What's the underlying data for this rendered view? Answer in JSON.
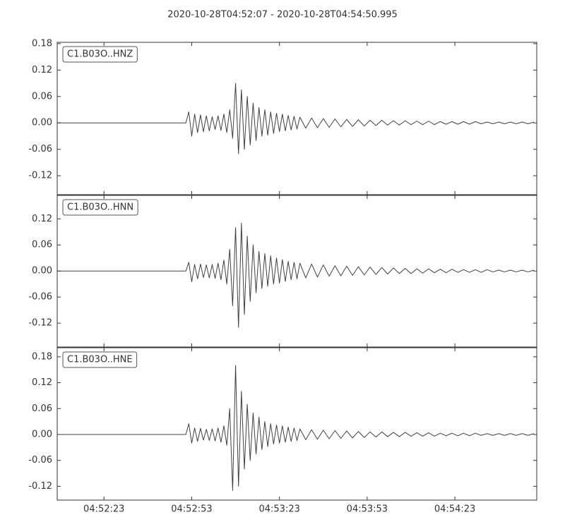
{
  "title": "2020-10-28T04:52:07  -  2020-10-28T04:54:50.995",
  "chart_data": [
    {
      "type": "line",
      "xlim": [
        17527,
        17690.995
      ],
      "ylim": [
        -0.163,
        0.183
      ],
      "yticks": [
        0.18,
        0.12,
        0.06,
        {
          "value": 0,
          "label": "0.00"
        },
        -0.06,
        -0.12
      ],
      "x": [
        17527,
        17571,
        17572,
        17573,
        17574,
        17575,
        17576,
        17577,
        17578,
        17579,
        17580,
        17581,
        17582,
        17583,
        17584,
        17585,
        17586,
        17587,
        17588,
        17589,
        17590,
        17591,
        17592,
        17593,
        17594,
        17595,
        17596,
        17597,
        17598,
        17599,
        17600,
        17601,
        17602,
        17603,
        17604,
        17605,
        17606,
        17607,
        17608,
        17609,
        17610,
        17612,
        17614,
        17616,
        17618,
        17620,
        17622,
        17624,
        17626,
        17628,
        17630,
        17632,
        17634,
        17636,
        17638,
        17640,
        17642,
        17644,
        17646,
        17648,
        17650,
        17652,
        17654,
        17656,
        17658,
        17660,
        17662,
        17664,
        17666,
        17668,
        17670,
        17672,
        17674,
        17676,
        17678,
        17680,
        17682,
        17684,
        17686,
        17688,
        17690
      ],
      "series": [
        {
          "name": "C1.B03O..HNZ",
          "color": "#404040",
          "values": [
            0,
            0,
            0.025,
            -0.03,
            0.02,
            -0.022,
            0.018,
            -0.02,
            0.016,
            -0.018,
            0.014,
            -0.015,
            0.016,
            -0.017,
            0.02,
            -0.022,
            0.03,
            -0.035,
            0.09,
            -0.07,
            0.075,
            -0.06,
            0.06,
            -0.05,
            0.045,
            -0.04,
            0.035,
            -0.03,
            0.03,
            -0.028,
            0.025,
            -0.024,
            0.022,
            -0.02,
            0.02,
            -0.018,
            0.017,
            -0.016,
            0.015,
            -0.014,
            0.013,
            -0.012,
            0.011,
            -0.011,
            0.01,
            -0.01,
            0.009,
            -0.009,
            0.008,
            -0.008,
            0.007,
            -0.007,
            0.006,
            -0.006,
            0.006,
            -0.005,
            0.005,
            -0.005,
            0.005,
            -0.004,
            0.004,
            -0.004,
            0.004,
            -0.004,
            0.003,
            -0.003,
            0.003,
            -0.003,
            0.003,
            -0.003,
            0.003,
            -0.002,
            0.002,
            -0.002,
            0.002,
            -0.002,
            0.002,
            -0.002,
            0.002,
            -0.002,
            0.002
          ]
        }
      ]
    },
    {
      "type": "line",
      "xlim": [
        17527,
        17690.995
      ],
      "ylim": [
        -0.175,
        0.174
      ],
      "yticks": [
        0.12,
        0.06,
        {
          "value": 0,
          "label": "0.00"
        },
        -0.06,
        -0.12
      ],
      "x": [
        17527,
        17571,
        17572,
        17573,
        17574,
        17575,
        17576,
        17577,
        17578,
        17579,
        17580,
        17581,
        17582,
        17583,
        17584,
        17585,
        17586,
        17587,
        17588,
        17589,
        17590,
        17591,
        17592,
        17593,
        17594,
        17595,
        17596,
        17597,
        17598,
        17599,
        17600,
        17601,
        17602,
        17603,
        17604,
        17605,
        17606,
        17607,
        17608,
        17609,
        17610,
        17612,
        17614,
        17616,
        17618,
        17620,
        17622,
        17624,
        17626,
        17628,
        17630,
        17632,
        17634,
        17636,
        17638,
        17640,
        17642,
        17644,
        17646,
        17648,
        17650,
        17652,
        17654,
        17656,
        17658,
        17660,
        17662,
        17664,
        17666,
        17668,
        17670,
        17672,
        17674,
        17676,
        17678,
        17680,
        17682,
        17684,
        17686,
        17688,
        17690
      ],
      "series": [
        {
          "name": "C1.B03O..HNN",
          "color": "#404040",
          "values": [
            0,
            0,
            0.02,
            -0.025,
            0.015,
            -0.018,
            0.016,
            -0.015,
            0.014,
            -0.016,
            0.015,
            -0.017,
            0.018,
            -0.02,
            0.025,
            -0.03,
            0.05,
            -0.08,
            0.1,
            -0.13,
            0.11,
            -0.1,
            0.08,
            -0.07,
            0.06,
            -0.05,
            0.045,
            -0.04,
            0.04,
            -0.035,
            0.035,
            -0.03,
            0.03,
            -0.028,
            0.026,
            -0.024,
            0.022,
            -0.02,
            0.02,
            -0.018,
            0.018,
            -0.016,
            0.016,
            -0.014,
            0.014,
            -0.012,
            0.012,
            -0.011,
            0.011,
            -0.01,
            0.01,
            -0.009,
            0.009,
            -0.008,
            0.008,
            -0.007,
            0.007,
            -0.006,
            0.006,
            -0.006,
            0.005,
            -0.005,
            0.005,
            -0.004,
            0.004,
            -0.004,
            0.004,
            -0.003,
            0.003,
            -0.003,
            0.003,
            -0.003,
            0.003,
            -0.002,
            0.002,
            -0.002,
            0.002,
            -0.002,
            0.002,
            -0.002,
            0.002
          ]
        }
      ]
    },
    {
      "type": "line",
      "xlim": [
        17527,
        17690.995
      ],
      "ylim": [
        -0.152,
        0.201
      ],
      "yticks": [
        0.18,
        0.12,
        0.06,
        {
          "value": 0,
          "label": "0.00"
        },
        -0.06,
        -0.12
      ],
      "xticks": [
        {
          "value": 17543,
          "label": "04:52:23"
        },
        {
          "value": 17573,
          "label": "04:52:53"
        },
        {
          "value": 17603,
          "label": "04:53:23"
        },
        {
          "value": 17633,
          "label": "04:53:53"
        },
        {
          "value": 17663,
          "label": "04:54:23"
        }
      ],
      "x": [
        17527,
        17571,
        17572,
        17573,
        17574,
        17575,
        17576,
        17577,
        17578,
        17579,
        17580,
        17581,
        17582,
        17583,
        17584,
        17585,
        17586,
        17587,
        17588,
        17589,
        17590,
        17591,
        17592,
        17593,
        17594,
        17595,
        17596,
        17597,
        17598,
        17599,
        17600,
        17601,
        17602,
        17603,
        17604,
        17605,
        17606,
        17607,
        17608,
        17609,
        17610,
        17612,
        17614,
        17616,
        17618,
        17620,
        17622,
        17624,
        17626,
        17628,
        17630,
        17632,
        17634,
        17636,
        17638,
        17640,
        17642,
        17644,
        17646,
        17648,
        17650,
        17652,
        17654,
        17656,
        17658,
        17660,
        17662,
        17664,
        17666,
        17668,
        17670,
        17672,
        17674,
        17676,
        17678,
        17680,
        17682,
        17684,
        17686,
        17688,
        17690
      ],
      "series": [
        {
          "name": "C1.B03O..HNE",
          "color": "#404040",
          "values": [
            0,
            0,
            0.025,
            -0.02,
            0.015,
            -0.016,
            0.014,
            -0.013,
            0.012,
            -0.014,
            0.013,
            -0.015,
            0.015,
            -0.018,
            0.02,
            -0.025,
            0.06,
            -0.13,
            0.16,
            -0.12,
            0.1,
            -0.08,
            0.07,
            -0.06,
            0.05,
            -0.045,
            0.04,
            -0.035,
            0.03,
            -0.028,
            0.025,
            -0.022,
            0.022,
            -0.02,
            0.02,
            -0.018,
            0.017,
            -0.016,
            0.015,
            -0.014,
            0.013,
            -0.012,
            0.011,
            -0.011,
            0.01,
            -0.01,
            0.009,
            -0.009,
            0.008,
            -0.008,
            0.007,
            -0.007,
            0.006,
            -0.006,
            0.006,
            -0.005,
            0.005,
            -0.005,
            0.005,
            -0.004,
            0.004,
            -0.004,
            0.004,
            -0.004,
            0.003,
            -0.003,
            0.003,
            -0.003,
            0.003,
            -0.003,
            0.003,
            -0.002,
            0.002,
            -0.002,
            0.002,
            -0.002,
            0.002,
            -0.002,
            0.002,
            -0.002,
            0.002
          ]
        }
      ]
    }
  ]
}
